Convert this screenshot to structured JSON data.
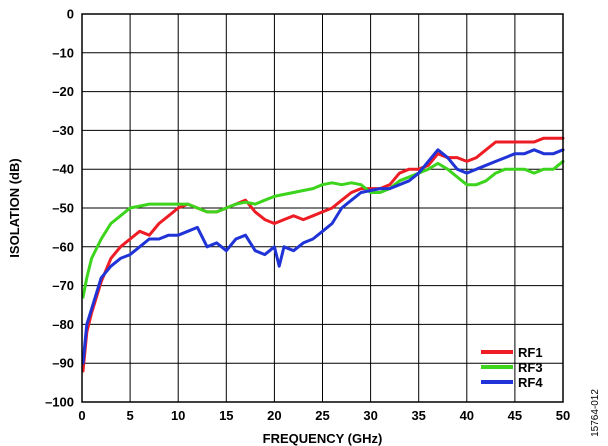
{
  "chart_data": {
    "type": "line",
    "title": "",
    "xlabel": "FREQUENCY (GHz)",
    "ylabel": "ISOLATION (dB)",
    "xlim": [
      0,
      50
    ],
    "ylim": [
      -100,
      0
    ],
    "xticks": [
      0,
      5,
      10,
      15,
      20,
      25,
      30,
      35,
      40,
      45,
      50
    ],
    "yticks": [
      0,
      -10,
      -20,
      -30,
      -40,
      -50,
      -60,
      -70,
      -80,
      -90,
      -100
    ],
    "ytick_labels": [
      "0",
      "–10",
      "–20",
      "–30",
      "–40",
      "–50",
      "–60",
      "–70",
      "–80",
      "–90",
      "–100"
    ],
    "grid": true,
    "legend_position": "bottom-right",
    "series": [
      {
        "name": "RF1",
        "color": "#ee1c24",
        "points": [
          [
            0.1,
            -92
          ],
          [
            0.5,
            -82
          ],
          [
            1,
            -77
          ],
          [
            2,
            -69
          ],
          [
            3,
            -63
          ],
          [
            4,
            -60
          ],
          [
            5,
            -58
          ],
          [
            6,
            -56
          ],
          [
            7,
            -57
          ],
          [
            8,
            -54
          ],
          [
            9,
            -52
          ],
          [
            10,
            -50
          ],
          [
            11,
            -49
          ],
          [
            12,
            -50
          ],
          [
            13,
            -51
          ],
          [
            14,
            -51
          ],
          [
            15,
            -50
          ],
          [
            16,
            -49
          ],
          [
            17,
            -48
          ],
          [
            18,
            -51
          ],
          [
            19,
            -53
          ],
          [
            20,
            -54
          ],
          [
            21,
            -53
          ],
          [
            22,
            -52
          ],
          [
            23,
            -53
          ],
          [
            24,
            -52
          ],
          [
            25,
            -51
          ],
          [
            26,
            -50
          ],
          [
            27,
            -48
          ],
          [
            28,
            -46
          ],
          [
            29,
            -45
          ],
          [
            30,
            -45
          ],
          [
            31,
            -45
          ],
          [
            32,
            -44
          ],
          [
            33,
            -41
          ],
          [
            34,
            -40
          ],
          [
            35,
            -40
          ],
          [
            36,
            -39
          ],
          [
            37,
            -36
          ],
          [
            38,
            -37
          ],
          [
            39,
            -37
          ],
          [
            40,
            -38
          ],
          [
            41,
            -37
          ],
          [
            42,
            -35
          ],
          [
            43,
            -33
          ],
          [
            44,
            -33
          ],
          [
            45,
            -33
          ],
          [
            46,
            -33
          ],
          [
            47,
            -33
          ],
          [
            48,
            -32
          ],
          [
            49,
            -32
          ],
          [
            50,
            -32
          ]
        ]
      },
      {
        "name": "RF3",
        "color": "#3cd41c",
        "points": [
          [
            0.1,
            -73
          ],
          [
            0.5,
            -68
          ],
          [
            1,
            -63
          ],
          [
            2,
            -58
          ],
          [
            3,
            -54
          ],
          [
            4,
            -52
          ],
          [
            5,
            -50
          ],
          [
            6,
            -49.5
          ],
          [
            7,
            -49
          ],
          [
            8,
            -49
          ],
          [
            9,
            -49
          ],
          [
            10,
            -49
          ],
          [
            11,
            -49
          ],
          [
            12,
            -50
          ],
          [
            13,
            -51
          ],
          [
            14,
            -51
          ],
          [
            15,
            -50
          ],
          [
            16,
            -49
          ],
          [
            17,
            -48.5
          ],
          [
            18,
            -49
          ],
          [
            19,
            -48
          ],
          [
            20,
            -47
          ],
          [
            21,
            -46.5
          ],
          [
            22,
            -46
          ],
          [
            23,
            -45.5
          ],
          [
            24,
            -45
          ],
          [
            25,
            -44
          ],
          [
            26,
            -43.5
          ],
          [
            27,
            -44
          ],
          [
            28,
            -43.5
          ],
          [
            29,
            -44
          ],
          [
            30,
            -46
          ],
          [
            31,
            -46
          ],
          [
            32,
            -45
          ],
          [
            33,
            -43
          ],
          [
            34,
            -42
          ],
          [
            35,
            -41
          ],
          [
            36,
            -40
          ],
          [
            37,
            -38.5
          ],
          [
            38,
            -40
          ],
          [
            39,
            -42
          ],
          [
            40,
            -44
          ],
          [
            41,
            -44
          ],
          [
            42,
            -43
          ],
          [
            43,
            -41
          ],
          [
            44,
            -40
          ],
          [
            45,
            -40
          ],
          [
            46,
            -40
          ],
          [
            47,
            -41
          ],
          [
            48,
            -40
          ],
          [
            49,
            -40
          ],
          [
            50,
            -38
          ]
        ]
      },
      {
        "name": "RF4",
        "color": "#1f33d6",
        "points": [
          [
            0.1,
            -90
          ],
          [
            0.5,
            -80
          ],
          [
            1,
            -76
          ],
          [
            2,
            -68
          ],
          [
            3,
            -65
          ],
          [
            4,
            -63
          ],
          [
            5,
            -62
          ],
          [
            6,
            -60
          ],
          [
            7,
            -58
          ],
          [
            8,
            -58
          ],
          [
            9,
            -57
          ],
          [
            10,
            -57
          ],
          [
            11,
            -56
          ],
          [
            12,
            -55
          ],
          [
            13,
            -60
          ],
          [
            14,
            -59
          ],
          [
            15,
            -61
          ],
          [
            16,
            -58
          ],
          [
            17,
            -57
          ],
          [
            18,
            -61
          ],
          [
            19,
            -62
          ],
          [
            20,
            -60
          ],
          [
            20.5,
            -65
          ],
          [
            21,
            -60
          ],
          [
            22,
            -61
          ],
          [
            23,
            -59
          ],
          [
            24,
            -58
          ],
          [
            25,
            -56
          ],
          [
            26,
            -54
          ],
          [
            27,
            -50
          ],
          [
            28,
            -48
          ],
          [
            29,
            -46
          ],
          [
            30,
            -45.5
          ],
          [
            31,
            -45
          ],
          [
            32,
            -45
          ],
          [
            33,
            -44
          ],
          [
            34,
            -43
          ],
          [
            35,
            -41
          ],
          [
            36,
            -38
          ],
          [
            37,
            -35
          ],
          [
            38,
            -37
          ],
          [
            39,
            -40
          ],
          [
            40,
            -41
          ],
          [
            41,
            -40
          ],
          [
            42,
            -39
          ],
          [
            43,
            -38
          ],
          [
            44,
            -37
          ],
          [
            45,
            -36
          ],
          [
            46,
            -36
          ],
          [
            47,
            -35
          ],
          [
            48,
            -36
          ],
          [
            49,
            -36
          ],
          [
            50,
            -35
          ]
        ]
      }
    ]
  },
  "figure_id": "15764-012"
}
